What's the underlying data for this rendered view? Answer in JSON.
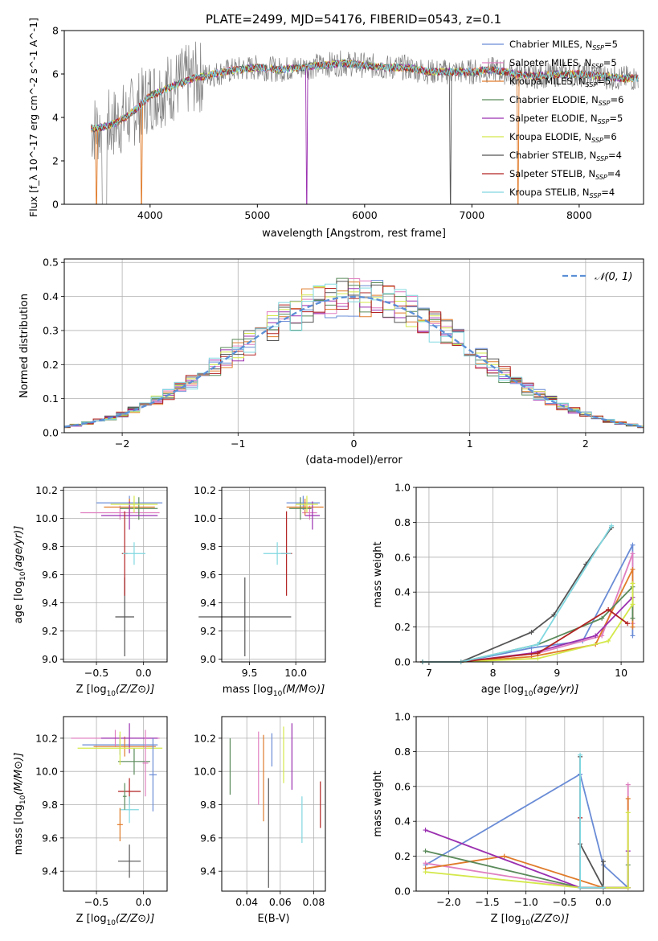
{
  "figure_title": "PLATE=2499, MJD=54176, FIBERID=0543, z=0.1",
  "chart_data": [
    {
      "id": "spectrum",
      "type": "line",
      "title": "PLATE=2499, MJD=54176, FIBERID=0543, z=0.1",
      "xlabel": "wavelength [Angstrom, rest frame]",
      "ylabel": "Flux [f_λ 10^-17 erg cm^-2 s^-1 A^-1]",
      "xlim": [
        3200,
        8600
      ],
      "ylim": [
        0,
        8
      ],
      "xticks": [
        4000,
        5000,
        6000,
        7000,
        8000
      ],
      "xtick_labels": [
        "4000",
        "5000",
        "6000",
        "7000",
        "8000"
      ],
      "yticks": [
        0,
        2,
        4,
        6,
        8
      ],
      "ytick_labels": [
        "0",
        "2",
        "4",
        "6",
        "8"
      ],
      "grid": false,
      "legend_position": "top-right",
      "continuum": {
        "x": [
          3500,
          3600,
          3700,
          3800,
          3900,
          4000,
          4100,
          4200,
          4400,
          4600,
          4800,
          5000,
          5200,
          5400,
          5600,
          5800,
          6000,
          6200,
          6400,
          6600,
          6800,
          7000,
          7200,
          7400,
          7600,
          7800,
          8000,
          8200,
          8400
        ],
        "y": [
          3.5,
          3.6,
          3.8,
          4.1,
          4.5,
          5.0,
          5.2,
          5.4,
          5.8,
          6.0,
          6.2,
          6.3,
          6.2,
          6.3,
          6.4,
          6.5,
          6.4,
          6.3,
          6.3,
          6.1,
          6.1,
          6.1,
          6.2,
          6.0,
          5.9,
          6.0,
          6.0,
          5.9,
          5.8
        ]
      },
      "series": [
        {
          "name": "Chabrier MILES, N_SSP=5",
          "label_main": "Chabrier MILES, N",
          "label_sub": "SSP",
          "label_tail": "=5",
          "color": "#6a8cd6"
        },
        {
          "name": "Salpeter MILES, N_SSP=5",
          "label_main": "Salpeter MILES, N",
          "label_sub": "SSP",
          "label_tail": "=5",
          "color": "#e07fc0"
        },
        {
          "name": "Kroupa MILES, N_SSP=5",
          "label_main": "Kroupa MILES, N",
          "label_sub": "SSP",
          "label_tail": "=5",
          "color": "#e07b2a"
        },
        {
          "name": "Chabrier ELODIE, N_SSP=6",
          "label_main": "Chabrier ELODIE, N",
          "label_sub": "SSP",
          "label_tail": "=6",
          "color": "#5a8a5a"
        },
        {
          "name": "Salpeter ELODIE, N_SSP=5",
          "label_main": "Salpeter ELODIE, N",
          "label_sub": "SSP",
          "label_tail": "=5",
          "color": "#9b30b0"
        },
        {
          "name": "Kroupa ELODIE, N_SSP=6",
          "label_main": "Kroupa ELODIE, N",
          "label_sub": "SSP",
          "label_tail": "=6",
          "color": "#d4e84a"
        },
        {
          "name": "Chabrier STELIB, N_SSP=4",
          "label_main": "Chabrier STELIB, N",
          "label_sub": "SSP",
          "label_tail": "=4",
          "color": "#555555"
        },
        {
          "name": "Salpeter STELIB, N_SSP=4",
          "label_main": "Salpeter STELIB, N",
          "label_sub": "SSP",
          "label_tail": "=4",
          "color": "#b22222"
        },
        {
          "name": "Kroupa STELIB, N_SSP=4",
          "label_main": "Kroupa STELIB, N",
          "label_sub": "SSP",
          "label_tail": "=4",
          "color": "#80d8e0"
        }
      ]
    },
    {
      "id": "residuals",
      "type": "histogram",
      "xlabel": "(data-model)/error",
      "ylabel": "Normed distribution",
      "xlim": [
        -2.5,
        2.5
      ],
      "ylim": [
        0,
        0.51
      ],
      "xticks": [
        -2,
        -1,
        0,
        1,
        2
      ],
      "xtick_labels": [
        "−2",
        "−1",
        "0",
        "1",
        "2"
      ],
      "yticks": [
        0.0,
        0.1,
        0.2,
        0.3,
        0.4,
        0.5
      ],
      "ytick_labels": [
        "0.0",
        "0.1",
        "0.2",
        "0.3",
        "0.4",
        "0.5"
      ],
      "grid": true,
      "bin_width": 0.1,
      "reference": {
        "name": "N(0,1)",
        "label": "𝒩(0, 1)",
        "color": "#5b8fd6",
        "style": "dashed"
      },
      "legend_position": "top-right"
    },
    {
      "id": "age-vs-z",
      "type": "errorbar",
      "xlabel_text": "Z [log",
      "xlabel_sub": "10",
      "xlabel_tail": "(Z/Z⊙)]",
      "ylabel_text": "age  [log",
      "ylabel_sub": "10",
      "ylabel_tail": "(age/yr)]",
      "xlim": [
        -0.85,
        0.25
      ],
      "ylim": [
        8.98,
        10.22
      ],
      "xticks": [
        -0.5,
        0.0
      ],
      "xtick_labels": [
        "−0.5",
        "0.0"
      ],
      "yticks": [
        9.0,
        9.2,
        9.4,
        9.6,
        9.8,
        10.0,
        10.2
      ],
      "ytick_labels": [
        "9.0",
        "9.2",
        "9.4",
        "9.6",
        "9.8",
        "10.0",
        "10.2"
      ],
      "grid": true,
      "points": [
        {
          "x": -0.15,
          "xerr": 0.35,
          "y": 10.11,
          "yerr": 0.05
        },
        {
          "x": -0.25,
          "xerr": 0.42,
          "y": 10.04,
          "yerr": 0.05
        },
        {
          "x": -0.15,
          "xerr": 0.27,
          "y": 10.08,
          "yerr": 0.06
        },
        {
          "x": -0.05,
          "xerr": 0.2,
          "y": 10.07,
          "yerr": 0.08
        },
        {
          "x": -0.15,
          "xerr": 0.3,
          "y": 10.02,
          "yerr": 0.1
        },
        {
          "x": -0.1,
          "xerr": 0.25,
          "y": 10.1,
          "yerr": 0.06
        },
        {
          "x": -0.2,
          "xerr": 0.1,
          "y": 9.3,
          "yerr": 0.28
        },
        {
          "x": -0.2,
          "xerr": 0.03,
          "y": 9.75,
          "yerr": 0.3
        },
        {
          "x": -0.1,
          "xerr": 0.12,
          "y": 9.75,
          "yerr": 0.08
        }
      ]
    },
    {
      "id": "age-vs-mass",
      "type": "errorbar",
      "xlabel_text": "mass [log",
      "xlabel_sub": "10",
      "xlabel_tail": "(M/M⊙)]",
      "xlim": [
        9.2,
        10.32
      ],
      "ylim": [
        8.98,
        10.22
      ],
      "xticks": [
        9.5,
        10.0
      ],
      "xtick_labels": [
        "9.5",
        "10.0"
      ],
      "yticks": [
        9.0,
        9.2,
        9.4,
        9.6,
        9.8,
        10.0,
        10.2
      ],
      "ytick_labels": [
        "9.0",
        "9.2",
        "9.4",
        "9.6",
        "9.8",
        "10.0",
        "10.2"
      ],
      "grid": true,
      "points": [
        {
          "x": 10.08,
          "xerr": 0.18,
          "y": 10.11,
          "yerr": 0.05
        },
        {
          "x": 10.15,
          "xerr": 0.08,
          "y": 10.04,
          "yerr": 0.05
        },
        {
          "x": 10.1,
          "xerr": 0.2,
          "y": 10.08,
          "yerr": 0.06
        },
        {
          "x": 10.05,
          "xerr": 0.12,
          "y": 10.07,
          "yerr": 0.08
        },
        {
          "x": 10.18,
          "xerr": 0.08,
          "y": 10.02,
          "yerr": 0.1
        },
        {
          "x": 10.12,
          "xerr": 0.12,
          "y": 10.1,
          "yerr": 0.06
        },
        {
          "x": 9.45,
          "xerr": 0.5,
          "y": 9.3,
          "yerr": 0.28
        },
        {
          "x": 9.9,
          "xerr": 0.06,
          "y": 9.75,
          "yerr": 0.3
        },
        {
          "x": 9.8,
          "xerr": 0.15,
          "y": 9.75,
          "yerr": 0.08
        }
      ]
    },
    {
      "id": "weight-vs-age",
      "type": "line",
      "xlabel_text": "age  [log",
      "xlabel_sub": "10",
      "xlabel_tail": "(age/yr)]",
      "ylabel": "mass weight",
      "xlim": [
        6.8,
        10.35
      ],
      "ylim": [
        0,
        1.0
      ],
      "xticks": [
        7,
        8,
        9,
        10
      ],
      "xtick_labels": [
        "7",
        "8",
        "9",
        "10"
      ],
      "yticks": [
        0.0,
        0.2,
        0.4,
        0.6,
        0.8,
        1.0
      ],
      "ytick_labels": [
        "0.0",
        "0.2",
        "0.4",
        "0.6",
        "0.8",
        "1.0"
      ],
      "grid": true,
      "lines": [
        {
          "x": [
            6.9,
            7.5,
            8.6,
            9.4,
            10.18,
            10.18
          ],
          "y": [
            0.0,
            0.0,
            0.08,
            0.12,
            0.67,
            0.15
          ]
        },
        {
          "x": [
            6.9,
            7.5,
            8.7,
            9.7,
            10.18,
            10.18
          ],
          "y": [
            0.0,
            0.0,
            0.05,
            0.15,
            0.62,
            0.22
          ]
        },
        {
          "x": [
            6.9,
            7.5,
            8.6,
            9.6,
            10.18,
            10.18
          ],
          "y": [
            0.0,
            0.0,
            0.03,
            0.1,
            0.53,
            0.2
          ]
        },
        {
          "x": [
            6.9,
            7.5,
            8.7,
            9.7,
            10.18,
            10.18
          ],
          "y": [
            0.0,
            0.0,
            0.1,
            0.25,
            0.43,
            0.25
          ]
        },
        {
          "x": [
            6.9,
            7.5,
            8.6,
            9.6,
            10.18
          ],
          "y": [
            0.0,
            0.0,
            0.05,
            0.15,
            0.37
          ]
        },
        {
          "x": [
            6.9,
            7.5,
            8.7,
            9.8,
            10.18,
            10.18
          ],
          "y": [
            0.0,
            0.0,
            0.02,
            0.12,
            0.33,
            0.45
          ]
        },
        {
          "x": [
            6.9,
            7.5,
            8.6,
            8.95,
            9.45,
            9.85
          ],
          "y": [
            0.0,
            0.0,
            0.17,
            0.27,
            0.56,
            0.77
          ]
        },
        {
          "x": [
            6.9,
            7.5,
            8.7,
            9.8,
            10.1
          ],
          "y": [
            0.0,
            0.0,
            0.05,
            0.3,
            0.22
          ]
        },
        {
          "x": [
            6.9,
            7.5,
            8.7,
            9.85
          ],
          "y": [
            0.0,
            0.0,
            0.1,
            0.78
          ]
        }
      ]
    },
    {
      "id": "mass-vs-z",
      "type": "errorbar",
      "xlabel_text": "Z [log",
      "xlabel_sub": "10",
      "xlabel_tail": "(Z/Z⊙)]",
      "ylabel_text": "mass [log",
      "ylabel_sub": "10",
      "ylabel_tail": "(M/M⊙)]",
      "xlim": [
        -0.85,
        0.25
      ],
      "ylim": [
        9.28,
        10.33
      ],
      "xticks": [
        -0.5,
        0.0
      ],
      "xtick_labels": [
        "−0.5",
        "0.0"
      ],
      "yticks": [
        9.4,
        9.6,
        9.8,
        10.0,
        10.2
      ],
      "ytick_labels": [
        "9.4",
        "9.6",
        "9.8",
        "10.0",
        "10.2"
      ],
      "grid": true,
      "points": [
        {
          "x": -0.25,
          "xerr": 0.4,
          "y": 10.16,
          "yerr": 0.06
        },
        {
          "x": -0.3,
          "xerr": 0.47,
          "y": 10.2,
          "yerr": 0.05
        },
        {
          "x": -0.2,
          "xerr": 0.33,
          "y": 10.15,
          "yerr": 0.06
        },
        {
          "x": -0.1,
          "xerr": 0.17,
          "y": 10.06,
          "yerr": 0.08
        },
        {
          "x": -0.15,
          "xerr": 0.3,
          "y": 10.2,
          "yerr": 0.09
        },
        {
          "x": -0.25,
          "xerr": 0.45,
          "y": 10.14,
          "yerr": 0.1
        },
        {
          "x": -0.15,
          "xerr": 0.12,
          "y": 9.46,
          "yerr": 0.1
        },
        {
          "x": -0.15,
          "xerr": 0.12,
          "y": 9.88,
          "yerr": 0.08
        },
        {
          "x": -0.15,
          "xerr": 0.1,
          "y": 9.77,
          "yerr": 0.08
        },
        {
          "x": 0.1,
          "xerr": 0.04,
          "y": 9.98,
          "yerr": 0.22
        },
        {
          "x": 0.02,
          "xerr": 0.03,
          "y": 10.05,
          "yerr": 0.2
        },
        {
          "x": -0.25,
          "xerr": 0.03,
          "y": 9.68,
          "yerr": 0.1
        },
        {
          "x": -0.2,
          "xerr": 0.02,
          "y": 9.85,
          "yerr": 0.08
        }
      ]
    },
    {
      "id": "mass-vs-ebv",
      "type": "errorbar",
      "xlabel": "E(B-V)",
      "xlim": [
        0.025,
        0.087
      ],
      "ylim": [
        9.28,
        10.33
      ],
      "xticks": [
        0.04,
        0.06,
        0.08
      ],
      "xtick_labels": [
        "0.04",
        "0.06",
        "0.08"
      ],
      "yticks": [
        9.4,
        9.6,
        9.8,
        10.0,
        10.2
      ],
      "ytick_labels": [
        "9.4",
        "9.6",
        "9.8",
        "10.0",
        "10.2"
      ],
      "grid": true,
      "points": [
        {
          "x": 0.055,
          "xerr": 0.0,
          "y": 10.13,
          "yerr": 0.1
        },
        {
          "x": 0.047,
          "xerr": 0.0,
          "y": 10.02,
          "yerr": 0.22
        },
        {
          "x": 0.05,
          "xerr": 0.0,
          "y": 9.96,
          "yerr": 0.26
        },
        {
          "x": 0.03,
          "xerr": 0.0,
          "y": 10.03,
          "yerr": 0.17
        },
        {
          "x": 0.067,
          "xerr": 0.0,
          "y": 10.09,
          "yerr": 0.2
        },
        {
          "x": 0.062,
          "xerr": 0.0,
          "y": 10.1,
          "yerr": 0.17
        },
        {
          "x": 0.053,
          "xerr": 0.0,
          "y": 9.63,
          "yerr": 0.33
        },
        {
          "x": 0.084,
          "xerr": 0.0,
          "y": 9.8,
          "yerr": 0.14
        },
        {
          "x": 0.073,
          "xerr": 0.0,
          "y": 9.71,
          "yerr": 0.14
        }
      ]
    },
    {
      "id": "weight-vs-z",
      "type": "line",
      "xlabel_text": "Z [log",
      "xlabel_sub": "10",
      "xlabel_tail": "(Z/Z⊙)]",
      "ylabel": "mass weight",
      "xlim": [
        -2.42,
        0.52
      ],
      "ylim": [
        0,
        1.0
      ],
      "xticks": [
        -2.0,
        -1.5,
        -1.0,
        -0.5,
        0.0
      ],
      "xtick_labels": [
        "−2.0",
        "−1.5",
        "−1.0",
        "−0.5",
        "0.0"
      ],
      "yticks": [
        0.0,
        0.2,
        0.4,
        0.6,
        0.8,
        1.0
      ],
      "ytick_labels": [
        "0.0",
        "0.2",
        "0.4",
        "0.6",
        "0.8",
        "1.0"
      ],
      "grid": true,
      "lines": [
        {
          "x": [
            -2.3,
            -0.3,
            0.0,
            0.32
          ],
          "y": [
            0.15,
            0.67,
            0.15,
            0.02
          ]
        },
        {
          "x": [
            -2.3,
            -0.3,
            0.0,
            0.32,
            0.32
          ],
          "y": [
            0.16,
            0.02,
            0.02,
            0.02,
            0.61
          ]
        },
        {
          "x": [
            -2.3,
            -1.28,
            0.0,
            0.32,
            0.32
          ],
          "y": [
            0.13,
            0.2,
            0.02,
            0.02,
            0.53
          ]
        },
        {
          "x": [
            -2.3,
            -0.3,
            0.0,
            0.32,
            0.32
          ],
          "y": [
            0.23,
            0.02,
            0.02,
            0.02,
            0.15
          ]
        },
        {
          "x": [
            -2.3,
            -0.3,
            0.0,
            0.32,
            0.32
          ],
          "y": [
            0.35,
            0.02,
            0.02,
            0.02,
            0.23
          ]
        },
        {
          "x": [
            -2.3,
            -0.3,
            0.0,
            0.32,
            0.32
          ],
          "y": [
            0.11,
            0.02,
            0.02,
            0.02,
            0.45
          ]
        },
        {
          "x": [
            -0.3,
            -0.3,
            0.0,
            0.0
          ],
          "y": [
            0.77,
            0.27,
            0.02,
            0.17
          ]
        },
        {
          "x": [
            -0.3,
            -0.3,
            0.0
          ],
          "y": [
            0.42,
            0.02,
            0.02
          ]
        },
        {
          "x": [
            -0.3,
            -0.3,
            0.0
          ],
          "y": [
            0.78,
            0.02,
            0.02
          ]
        }
      ]
    }
  ]
}
